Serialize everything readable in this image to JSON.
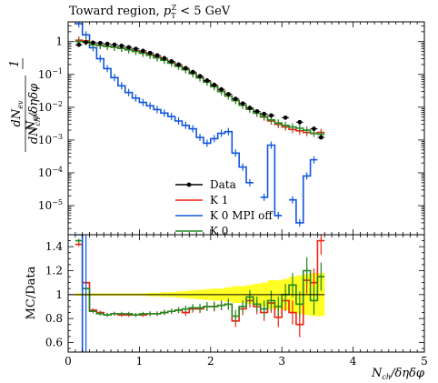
{
  "chart_data": {
    "type": "line",
    "title": "Toward region, p_T^Z < 5 GeV",
    "title_parts": {
      "main": "Toward region, ",
      "var": "p",
      "sup": "Z",
      "sub": "T",
      "cut": " < 5 GeV"
    },
    "xlabel": "N_ch / δηδφ",
    "xlabel_parts": {
      "n": "N",
      "sub": "ch",
      "rest": "/δηδφ"
    },
    "ylabel": "1/N_ev dN_ev/dN_ch/δηδφ",
    "ylabel_parts": {
      "frac1_num": "1",
      "frac1_den": "N",
      "frac1_den_sub": "ev",
      "frac2_num": "dN",
      "frac2_num_sub": "ev",
      "frac2_den": "dN",
      "frac2_den_sub": "ch",
      "frac2_den_rest": "/δηδφ"
    },
    "ratio_ylabel": "MC/Data",
    "xlim": [
      0,
      5
    ],
    "ylim_log": [
      1.3e-06,
      4
    ],
    "ratio_ylim": [
      0.52,
      1.5
    ],
    "yscale": "log",
    "xticks": [
      "0",
      "1",
      "2",
      "3",
      "4",
      "5"
    ],
    "yticks": [
      "10^-5",
      "10^-4",
      "10^-3",
      "10^-2",
      "10^-1",
      "1"
    ],
    "ratio_yticks": [
      "0.6",
      "0.8",
      "1",
      "1.2",
      "1.4"
    ],
    "legend_location": "center",
    "legend": [
      "Data",
      "K 1",
      "K 0 MPI off",
      "K 0"
    ],
    "bin_edges": [
      0.1,
      0.2,
      0.3,
      0.4,
      0.5,
      0.6,
      0.7,
      0.8,
      0.9,
      1.0,
      1.1,
      1.2,
      1.3,
      1.4,
      1.5,
      1.6,
      1.7,
      1.8,
      1.9,
      2.0,
      2.1,
      2.2,
      2.3,
      2.4,
      2.5,
      2.6,
      2.7,
      2.8,
      2.9,
      3.0,
      3.1,
      3.2,
      3.3,
      3.4,
      3.5,
      3.6
    ],
    "series": [
      {
        "name": "Data",
        "color": "#000000",
        "style": "points",
        "values": [
          0.8,
          0.95,
          0.93,
          0.9,
          0.85,
          0.8,
          0.74,
          0.67,
          0.6,
          0.52,
          0.45,
          0.38,
          0.31,
          0.25,
          0.2,
          0.155,
          0.118,
          0.088,
          0.065,
          0.048,
          0.035,
          0.025,
          0.018,
          0.013,
          0.0095,
          0.0075,
          0.0062,
          0.0056,
          null,
          0.0048,
          null,
          0.0035,
          null,
          0.0022,
          0.0012
        ]
      },
      {
        "name": "K 1",
        "color": "#ee2211",
        "style": "histogram",
        "values": [
          1.1,
          1.05,
          0.8,
          0.77,
          0.72,
          0.68,
          0.63,
          0.58,
          0.52,
          0.46,
          0.4,
          0.34,
          0.28,
          0.23,
          0.18,
          0.142,
          0.108,
          0.08,
          0.06,
          0.044,
          0.031,
          0.022,
          0.016,
          0.0115,
          0.0088,
          0.0066,
          0.005,
          0.0038,
          0.003,
          0.0025,
          0.0021,
          0.0019,
          0.0017,
          0.0016,
          0.0017
        ]
      },
      {
        "name": "K 0 MPI off",
        "color": "#1155dd",
        "style": "histogram",
        "values": [
          3.5,
          1.6,
          0.65,
          0.3,
          0.15,
          0.08,
          0.045,
          0.028,
          0.019,
          0.014,
          0.011,
          0.0085,
          0.0066,
          0.0052,
          0.0038,
          0.0028,
          0.0022,
          0.0012,
          0.0008,
          0.0011,
          0.0016,
          0.0018,
          0.0004,
          0.00015,
          5e-05,
          null,
          1.8e-05,
          0.0007,
          5e-06,
          null,
          1.5e-05,
          3e-06,
          8e-05,
          0.00025,
          null
        ]
      },
      {
        "name": "K 0",
        "color": "#228822",
        "style": "histogram",
        "values": [
          1.0,
          1.0,
          0.8,
          0.76,
          0.71,
          0.67,
          0.62,
          0.56,
          0.5,
          0.44,
          0.38,
          0.32,
          0.27,
          0.22,
          0.175,
          0.138,
          0.105,
          0.078,
          0.058,
          0.042,
          0.03,
          0.022,
          0.016,
          0.0115,
          0.0087,
          0.0066,
          0.0052,
          0.0041,
          0.0033,
          0.0028,
          0.0025,
          0.0023,
          0.002,
          0.0016,
          0.0015
        ]
      }
    ],
    "ratio_series": [
      {
        "name": "K 1",
        "color": "#ee2211",
        "values": [
          1.42,
          1.1,
          0.87,
          0.85,
          0.83,
          0.84,
          0.83,
          0.83,
          0.83,
          0.83,
          0.84,
          0.84,
          0.85,
          0.86,
          0.87,
          0.85,
          0.88,
          0.88,
          0.9,
          0.9,
          0.91,
          0.92,
          0.78,
          0.88,
          0.95,
          0.9,
          0.85,
          0.93,
          0.81,
          0.95,
          0.85,
          0.75,
          1.12,
          1.1,
          1.45
        ]
      },
      {
        "name": "K 0",
        "color": "#228822",
        "values": [
          1.45,
          1.05,
          0.86,
          0.84,
          0.83,
          0.84,
          0.84,
          0.84,
          0.83,
          0.84,
          0.84,
          0.84,
          0.85,
          0.86,
          0.87,
          0.88,
          0.89,
          0.89,
          0.9,
          0.9,
          0.91,
          0.92,
          0.82,
          0.9,
          0.98,
          0.92,
          0.88,
          0.95,
          0.9,
          1.0,
          1.08,
          0.92,
          1.2,
          0.95,
          1.15
        ]
      }
    ],
    "ratio_band_halfwidth": [
      0.01,
      0.01,
      0.01,
      0.01,
      0.01,
      0.01,
      0.01,
      0.01,
      0.01,
      0.01,
      0.015,
      0.015,
      0.02,
      0.02,
      0.025,
      0.03,
      0.035,
      0.04,
      0.045,
      0.05,
      0.05,
      0.06,
      0.07,
      0.07,
      0.08,
      0.09,
      0.1,
      0.12,
      0.12,
      0.13,
      0.15,
      0.16,
      0.17,
      0.18,
      0.18
    ]
  }
}
